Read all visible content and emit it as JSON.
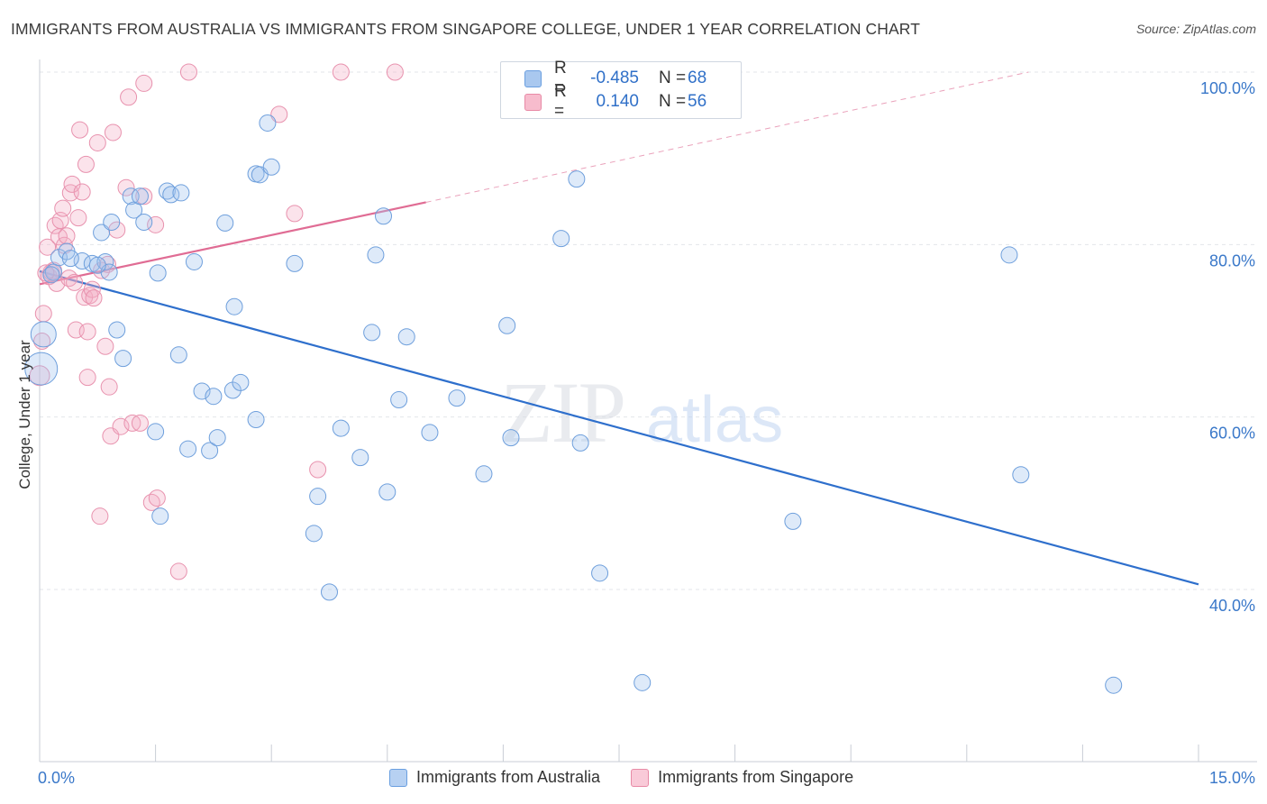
{
  "title": "IMMIGRANTS FROM AUSTRALIA VS IMMIGRANTS FROM SINGAPORE COLLEGE, UNDER 1 YEAR CORRELATION CHART",
  "source": "Source: ZipAtlas.com",
  "watermark": {
    "zip": "ZIP",
    "atlas": "atlas"
  },
  "legend": {
    "rows": [
      {
        "r_label": "R =",
        "r_value": "-0.485",
        "n_label": "N =",
        "n_value": "68",
        "color": "#a9c8ef",
        "border": "#6a9fe0"
      },
      {
        "r_label": "R =",
        "r_value": "0.140",
        "n_label": "N =",
        "n_value": "56",
        "color": "#f7bccd",
        "border": "#e88aa6"
      }
    ]
  },
  "colors": {
    "australia_fill": "rgba(160,196,238,0.35)",
    "australia_stroke": "#6e9fdc",
    "australia_line": "#2e6fcc",
    "singapore_fill": "rgba(244,176,198,0.35)",
    "singapore_stroke": "#e892ae",
    "singapore_line": "#e06c94",
    "axis_label": "#3a78c9",
    "grid": "#e3e6ea"
  },
  "chart_data": {
    "type": "scatter",
    "title": "IMMIGRANTS FROM AUSTRALIA VS IMMIGRANTS FROM SINGAPORE COLLEGE, UNDER 1 YEAR CORRELATION CHART",
    "xlabel": "",
    "ylabel": "College, Under 1 year",
    "xlim": [
      0,
      15
    ],
    "ylim": [
      22,
      102
    ],
    "x_tick_labels": [
      "0.0%",
      "15.0%"
    ],
    "y_ticks": [
      40,
      60,
      80,
      100
    ],
    "y_tick_labels": [
      "40.0%",
      "60.0%",
      "80.0%",
      "100.0%"
    ],
    "grid": true,
    "legend_position": "top-center",
    "series": [
      {
        "name": "Immigrants from Australia",
        "r": -0.485,
        "n": 68,
        "trend": {
          "x": [
            0,
            15
          ],
          "y": [
            76.9,
            40.6
          ]
        },
        "points": [
          [
            0.05,
            69.6,
            14
          ],
          [
            0.02,
            65.6,
            18
          ],
          [
            0.18,
            76.8,
            9
          ],
          [
            0.25,
            78.5,
            9
          ],
          [
            0.35,
            79.2,
            9
          ],
          [
            0.55,
            78.1,
            9
          ],
          [
            0.68,
            77.8,
            9
          ],
          [
            0.8,
            81.4,
            9
          ],
          [
            0.85,
            78.0,
            9
          ],
          [
            0.9,
            76.8,
            9
          ],
          [
            0.93,
            82.6,
            9
          ],
          [
            1.0,
            70.1,
            9
          ],
          [
            1.08,
            66.8,
            9
          ],
          [
            1.18,
            85.6,
            9
          ],
          [
            1.22,
            84.0,
            9
          ],
          [
            1.3,
            85.6,
            9
          ],
          [
            1.35,
            82.6,
            9
          ],
          [
            1.5,
            58.3,
            9
          ],
          [
            1.53,
            76.7,
            9
          ],
          [
            1.56,
            48.5,
            9
          ],
          [
            1.65,
            86.2,
            9
          ],
          [
            1.7,
            85.8,
            9
          ],
          [
            1.83,
            86.0,
            9
          ],
          [
            1.8,
            67.2,
            9
          ],
          [
            1.92,
            56.3,
            9
          ],
          [
            2.0,
            78.0,
            9
          ],
          [
            2.1,
            63.0,
            9
          ],
          [
            2.2,
            56.1,
            9
          ],
          [
            2.25,
            62.4,
            9
          ],
          [
            2.3,
            57.6,
            9
          ],
          [
            2.4,
            82.5,
            9
          ],
          [
            2.5,
            63.1,
            9
          ],
          [
            2.52,
            72.8,
            9
          ],
          [
            2.6,
            64.0,
            9
          ],
          [
            2.8,
            59.7,
            9
          ],
          [
            2.8,
            88.2,
            9
          ],
          [
            2.85,
            88.1,
            9
          ],
          [
            2.95,
            94.1,
            9
          ],
          [
            3.0,
            89.0,
            9
          ],
          [
            3.3,
            77.8,
            9
          ],
          [
            3.55,
            46.5,
            9
          ],
          [
            3.6,
            50.8,
            9
          ],
          [
            3.75,
            39.7,
            9
          ],
          [
            3.9,
            58.7,
            9
          ],
          [
            4.15,
            55.3,
            9
          ],
          [
            4.3,
            69.8,
            9
          ],
          [
            4.35,
            78.8,
            9
          ],
          [
            4.45,
            83.3,
            9
          ],
          [
            4.5,
            51.3,
            9
          ],
          [
            4.65,
            62.0,
            9
          ],
          [
            4.75,
            69.3,
            9
          ],
          [
            5.05,
            58.2,
            9
          ],
          [
            5.4,
            62.2,
            9
          ],
          [
            5.75,
            53.4,
            9
          ],
          [
            6.05,
            70.6,
            9
          ],
          [
            6.1,
            57.6,
            9
          ],
          [
            6.75,
            80.7,
            9
          ],
          [
            6.95,
            87.6,
            9
          ],
          [
            7.0,
            57.0,
            9
          ],
          [
            7.25,
            41.9,
            9
          ],
          [
            7.8,
            29.2,
            9
          ],
          [
            9.75,
            47.9,
            9
          ],
          [
            12.55,
            78.8,
            9
          ],
          [
            12.7,
            53.3,
            9
          ],
          [
            13.9,
            28.9,
            9
          ],
          [
            0.15,
            76.5,
            9
          ],
          [
            0.4,
            78.4,
            9
          ],
          [
            0.75,
            77.6,
            9
          ]
        ]
      },
      {
        "name": "Immigrants from Singapore",
        "r": 0.14,
        "n": 56,
        "trend": {
          "x": [
            0,
            5.0
          ],
          "y": [
            75.4,
            84.9
          ]
        },
        "trend_dashed": {
          "x": [
            5.0,
            12.8
          ],
          "y": [
            84.9,
            100.0
          ]
        },
        "points": [
          [
            0.0,
            64.8,
            11
          ],
          [
            0.03,
            68.8,
            9
          ],
          [
            0.05,
            72.0,
            9
          ],
          [
            0.1,
            79.7,
            9
          ],
          [
            0.12,
            76.3,
            9
          ],
          [
            0.15,
            76.8,
            9
          ],
          [
            0.2,
            82.2,
            9
          ],
          [
            0.22,
            75.5,
            9
          ],
          [
            0.25,
            80.9,
            9
          ],
          [
            0.27,
            82.8,
            9
          ],
          [
            0.3,
            84.2,
            9
          ],
          [
            0.32,
            79.9,
            9
          ],
          [
            0.35,
            81.0,
            9
          ],
          [
            0.38,
            76.1,
            9
          ],
          [
            0.4,
            86.0,
            9
          ],
          [
            0.42,
            87.0,
            9
          ],
          [
            0.45,
            75.6,
            9
          ],
          [
            0.47,
            70.1,
            9
          ],
          [
            0.5,
            83.1,
            9
          ],
          [
            0.52,
            93.3,
            9
          ],
          [
            0.55,
            86.1,
            9
          ],
          [
            0.58,
            73.9,
            9
          ],
          [
            0.6,
            89.3,
            9
          ],
          [
            0.62,
            64.6,
            9
          ],
          [
            0.65,
            74.1,
            9
          ],
          [
            0.68,
            74.8,
            9
          ],
          [
            0.75,
            91.8,
            9
          ],
          [
            0.78,
            48.5,
            9
          ],
          [
            0.8,
            77.0,
            9
          ],
          [
            0.85,
            68.2,
            9
          ],
          [
            0.88,
            77.7,
            9
          ],
          [
            0.9,
            63.5,
            9
          ],
          [
            0.92,
            57.8,
            9
          ],
          [
            0.95,
            93.0,
            9
          ],
          [
            1.0,
            81.7,
            9
          ],
          [
            1.05,
            58.9,
            9
          ],
          [
            1.12,
            86.6,
            9
          ],
          [
            1.15,
            97.1,
            9
          ],
          [
            1.2,
            59.3,
            9
          ],
          [
            1.3,
            59.3,
            9
          ],
          [
            1.35,
            85.6,
            9
          ],
          [
            1.35,
            98.7,
            9
          ],
          [
            1.45,
            50.1,
            9
          ],
          [
            1.5,
            82.3,
            9
          ],
          [
            1.52,
            50.6,
            9
          ],
          [
            1.8,
            42.1,
            9
          ],
          [
            1.93,
            100.0,
            9
          ],
          [
            3.1,
            95.1,
            9
          ],
          [
            3.3,
            83.6,
            9
          ],
          [
            3.6,
            53.9,
            9
          ],
          [
            3.9,
            100.0,
            9
          ],
          [
            4.6,
            100.0,
            9
          ],
          [
            0.18,
            77.0,
            9
          ],
          [
            0.08,
            76.7,
            9
          ],
          [
            0.7,
            73.8,
            9
          ],
          [
            0.62,
            69.9,
            9
          ]
        ]
      }
    ]
  }
}
